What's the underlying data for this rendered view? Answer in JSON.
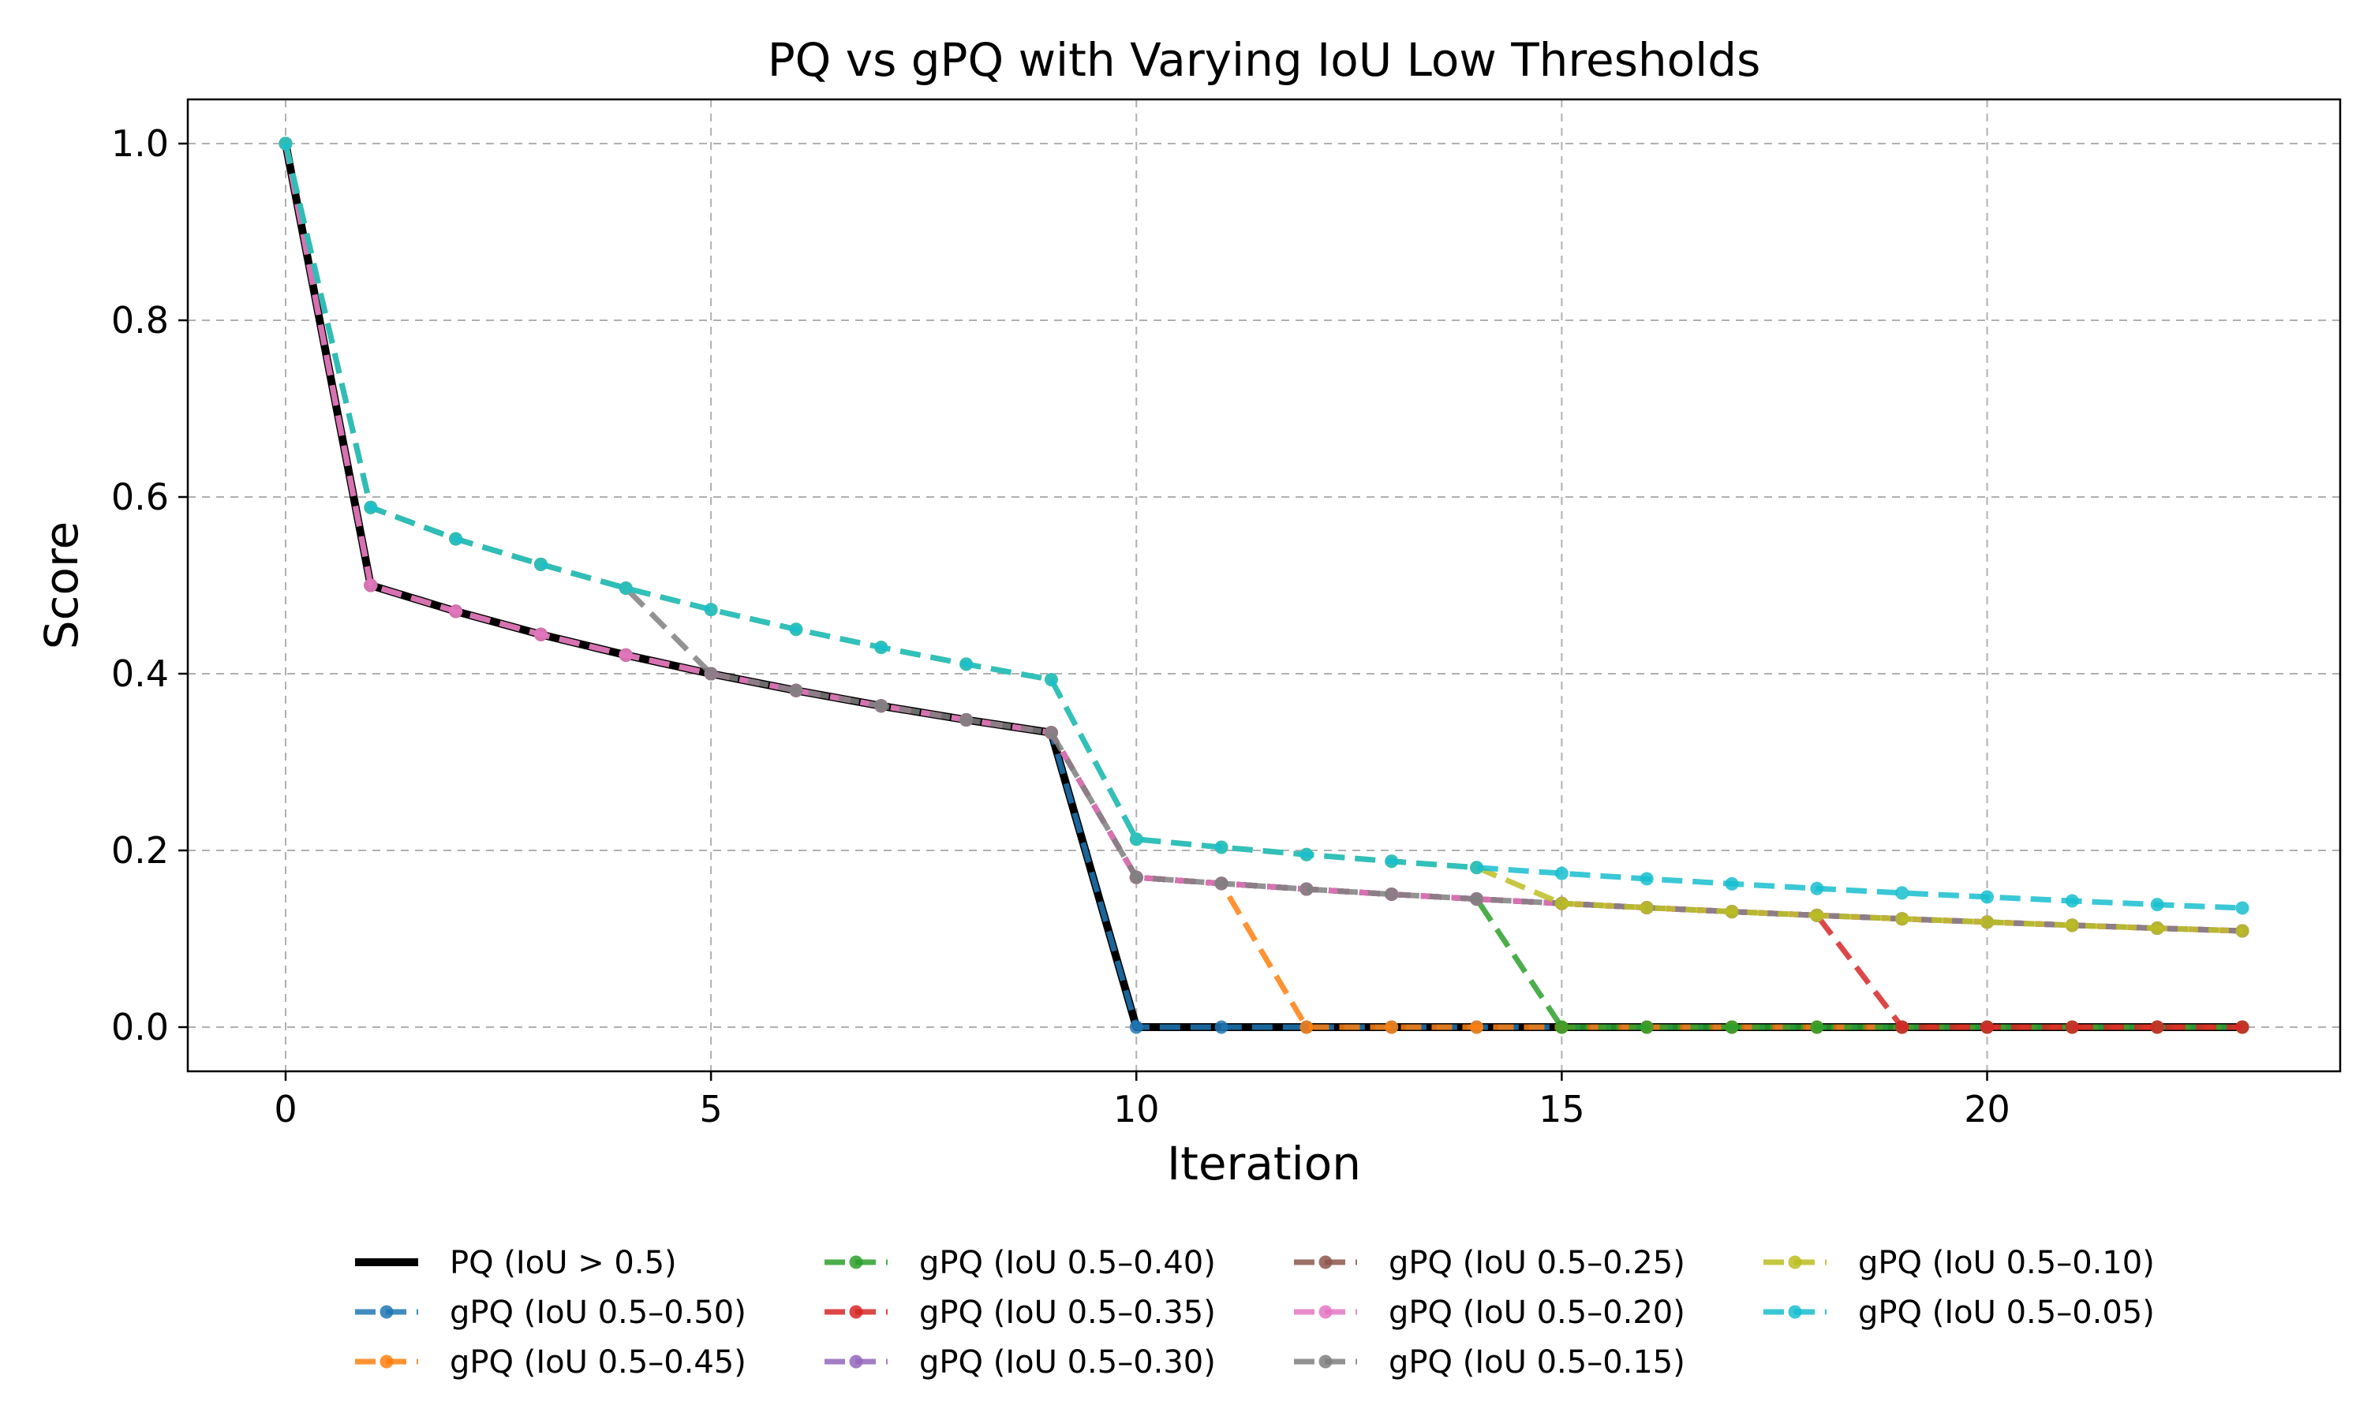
{
  "chart_data": {
    "type": "line",
    "title": "PQ vs gPQ with Varying IoU Low Thresholds",
    "xlabel": "Iteration",
    "ylabel": "Score",
    "xlim": [
      -1.15,
      24.15
    ],
    "ylim": [
      -0.05,
      1.05
    ],
    "xticks": [
      0,
      5,
      10,
      15,
      20
    ],
    "yticks": [
      0.0,
      0.2,
      0.4,
      0.6,
      0.8,
      1.0
    ],
    "ytick_labels": [
      "0.0",
      "0.2",
      "0.4",
      "0.6",
      "0.8",
      "1.0"
    ],
    "grid": true,
    "legend_position": "below plot, 4 columns",
    "x": [
      0,
      1,
      2,
      3,
      4,
      5,
      6,
      7,
      8,
      9,
      10,
      11,
      12,
      13,
      14,
      15,
      16,
      17,
      18,
      19,
      20,
      21,
      22,
      23
    ],
    "series": [
      {
        "name": "PQ (IoU > 0.5)",
        "color": "#000000",
        "style": "solid",
        "marker": false,
        "values": [
          1.0,
          0.5,
          0.4706,
          0.4444,
          0.4211,
          0.4,
          0.381,
          0.3636,
          0.3478,
          0.3333,
          0,
          0,
          0,
          0,
          0,
          0,
          0,
          0,
          0,
          0,
          0,
          0,
          0,
          0
        ]
      },
      {
        "name": "gPQ (IoU 0.5–0.50)",
        "color": "#1f77b4",
        "style": "dashed",
        "marker": true,
        "values": [
          1.0,
          0.5,
          0.4706,
          0.4444,
          0.4211,
          0.4,
          0.381,
          0.3636,
          0.3478,
          0.3333,
          0,
          0,
          0,
          0,
          0,
          0,
          0,
          0,
          0,
          0,
          0,
          0,
          0,
          0
        ]
      },
      {
        "name": "gPQ (IoU 0.5–0.45)",
        "color": "#ff7f0e",
        "style": "dashed",
        "marker": true,
        "values": [
          1.0,
          0.5,
          0.4706,
          0.4444,
          0.4211,
          0.4,
          0.381,
          0.3636,
          0.3478,
          0.3333,
          0.1695,
          0.1626,
          0,
          0,
          0,
          0,
          0,
          0,
          0,
          0,
          0,
          0,
          0,
          0
        ]
      },
      {
        "name": "gPQ (IoU 0.5–0.40)",
        "color": "#2ca02c",
        "style": "dashed",
        "marker": true,
        "values": [
          1.0,
          0.5,
          0.4706,
          0.4444,
          0.4211,
          0.4,
          0.381,
          0.3636,
          0.3478,
          0.3333,
          0.1695,
          0.1626,
          0.1562,
          0.1504,
          0.145,
          0,
          0,
          0,
          0,
          0,
          0,
          0,
          0,
          0
        ]
      },
      {
        "name": "gPQ (IoU 0.5–0.35)",
        "color": "#d62728",
        "style": "dashed",
        "marker": true,
        "values": [
          1.0,
          0.5,
          0.4706,
          0.4444,
          0.4211,
          0.4,
          0.381,
          0.3636,
          0.3478,
          0.3333,
          0.1695,
          0.1626,
          0.1562,
          0.1504,
          0.145,
          0.14,
          0.1352,
          0.1307,
          0.1265,
          0,
          0,
          0,
          0,
          0
        ]
      },
      {
        "name": "gPQ (IoU 0.5–0.30)",
        "color": "#9467bd",
        "style": "dashed",
        "marker": true,
        "values": [
          1.0,
          0.5,
          0.4706,
          0.4444,
          0.4211,
          0.4,
          0.381,
          0.3636,
          0.3478,
          0.3333,
          0.1695,
          0.1626,
          0.1562,
          0.1504,
          0.145,
          0.14,
          0.1352,
          0.1307,
          0.1265,
          0.1226,
          0.1189,
          0.1153,
          0.112,
          0.1089
        ]
      },
      {
        "name": "gPQ (IoU 0.5–0.25)",
        "color": "#8c564b",
        "style": "dashed",
        "marker": true,
        "values": [
          1.0,
          0.5,
          0.4706,
          0.4444,
          0.4211,
          0.4,
          0.381,
          0.3636,
          0.3478,
          0.3333,
          0.1695,
          0.1626,
          0.1562,
          0.1504,
          0.145,
          0.14,
          0.1352,
          0.1307,
          0.1265,
          0.1226,
          0.1189,
          0.1153,
          0.112,
          0.1089
        ]
      },
      {
        "name": "gPQ (IoU 0.5–0.20)",
        "color": "#e377c2",
        "style": "dashed",
        "marker": true,
        "values": [
          1.0,
          0.5,
          0.4706,
          0.4444,
          0.4211,
          0.4,
          0.381,
          0.3636,
          0.3478,
          0.3333,
          0.1695,
          0.1626,
          0.1562,
          0.1504,
          0.145,
          0.14,
          0.1352,
          0.1307,
          0.1265,
          0.1226,
          0.1189,
          0.1153,
          0.112,
          0.1089
        ]
      },
      {
        "name": "gPQ (IoU 0.5–0.15)",
        "color": "#7f7f7f",
        "style": "dashed",
        "marker": true,
        "values": [
          1.0,
          0.5882,
          0.5526,
          0.5238,
          0.4968,
          0.4,
          0.381,
          0.3636,
          0.3478,
          0.3333,
          0.1695,
          0.1626,
          0.1562,
          0.1504,
          0.145,
          0.14,
          0.1352,
          0.1307,
          0.1265,
          0.1226,
          0.1189,
          0.1153,
          0.112,
          0.1089
        ]
      },
      {
        "name": "gPQ (IoU 0.5–0.10)",
        "color": "#bcbd22",
        "style": "dashed",
        "marker": true,
        "values": [
          1.0,
          0.5882,
          0.5526,
          0.5238,
          0.4968,
          0.4726,
          0.4502,
          0.4298,
          0.4108,
          0.3933,
          0.2127,
          0.2036,
          0.1953,
          0.1877,
          0.1806,
          0.14,
          0.1352,
          0.1307,
          0.1265,
          0.1226,
          0.1189,
          0.1153,
          0.112,
          0.1089
        ]
      },
      {
        "name": "gPQ (IoU 0.5–0.05)",
        "color": "#17becf",
        "style": "dashed",
        "marker": true,
        "values": [
          1.0,
          0.5882,
          0.5526,
          0.5238,
          0.4968,
          0.4726,
          0.4502,
          0.4298,
          0.4108,
          0.3933,
          0.2127,
          0.2036,
          0.1953,
          0.1877,
          0.1806,
          0.174,
          0.1679,
          0.1622,
          0.1569,
          0.1519,
          0.1473,
          0.1429,
          0.1387,
          0.1348
        ]
      }
    ]
  }
}
